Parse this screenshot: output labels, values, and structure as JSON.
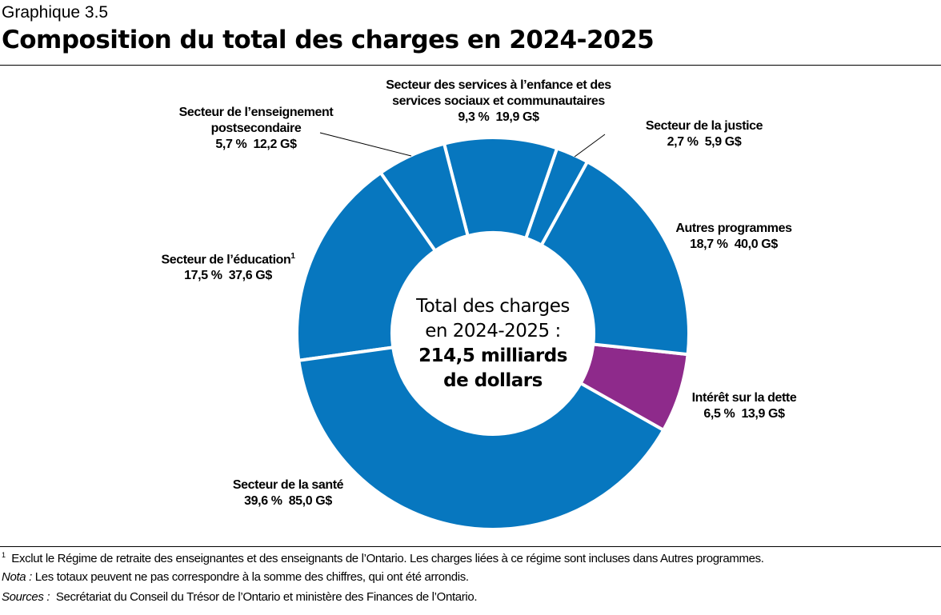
{
  "header": {
    "kicker": "Graphique 3.5",
    "title": "Composition du total des charges en 2024-2025"
  },
  "center": {
    "line1": "Total des charges",
    "line2": "en 2024-2025 :",
    "line3": "214,5 milliards",
    "line4": "de dollars"
  },
  "colors": {
    "blue": "#0777BF",
    "purple": "#8E2A8B"
  },
  "chart_data": {
    "type": "pie",
    "variant": "donut",
    "total": "214,5 milliards de dollars",
    "slices": [
      {
        "name": "Autres programmes",
        "percent": 18.7,
        "value": 40.0,
        "percent_label": "18,7 %",
        "value_label": "40,0 G$",
        "color": "#0777BF"
      },
      {
        "name": "Intérêt sur la dette",
        "percent": 6.5,
        "value": 13.9,
        "percent_label": "6,5 %",
        "value_label": "13,9 G$",
        "color": "#8E2A8B"
      },
      {
        "name": "Secteur de la santé",
        "percent": 39.6,
        "value": 85.0,
        "percent_label": "39,6 %",
        "value_label": "85,0 G$",
        "color": "#0777BF"
      },
      {
        "name": "Secteur de l’éducation",
        "sup": "1",
        "percent": 17.5,
        "value": 37.6,
        "percent_label": "17,5 %",
        "value_label": "37,6 G$",
        "color": "#0777BF"
      },
      {
        "name": "Secteur de l’enseignement postsecondaire",
        "name_line1": "Secteur de l’enseignement",
        "name_line2": "postsecondaire",
        "percent": 5.7,
        "value": 12.2,
        "percent_label": "5,7 %",
        "value_label": "12,2 G$",
        "color": "#0777BF"
      },
      {
        "name": "Secteur des services à l’enfance et des services sociaux et communautaires",
        "name_line1": "Secteur des services à l’enfance et des",
        "name_line2": "services sociaux et communautaires",
        "percent": 9.3,
        "value": 19.9,
        "percent_label": "9,3 %",
        "value_label": "19,9 G$",
        "color": "#0777BF"
      },
      {
        "name": "Secteur de la justice",
        "percent": 2.7,
        "value": 5.9,
        "percent_label": "2,7 %",
        "value_label": "5,9 G$",
        "color": "#0777BF"
      }
    ],
    "unit": "G$"
  },
  "footnotes": {
    "note1_marker": "1",
    "note1": "Exclut le Régime de retraite des enseignantes et des enseignants de l’Ontario. Les charges liées à ce régime sont incluses dans Autres programmes.",
    "nota_label": "Nota :",
    "nota": "Les totaux peuvent ne pas correspondre à la somme des chiffres, qui ont été arrondis.",
    "sources_label": "Sources :",
    "sources": "Secrétariat du Conseil du Trésor de l’Ontario et ministère des Finances de l’Ontario."
  }
}
